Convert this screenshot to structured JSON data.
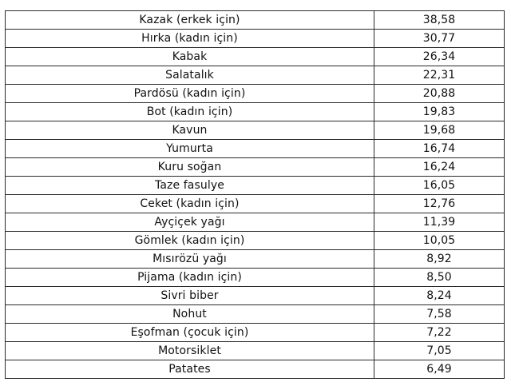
{
  "table": {
    "rows": [
      {
        "item": "Kazak (erkek için)",
        "value": "38,58"
      },
      {
        "item": "Hırka (kadın için)",
        "value": "30,77"
      },
      {
        "item": "Kabak",
        "value": "26,34"
      },
      {
        "item": "Salatalık",
        "value": "22,31"
      },
      {
        "item": "Pardösü (kadın için)",
        "value": "20,88"
      },
      {
        "item": "Bot (kadın için)",
        "value": "19,83"
      },
      {
        "item": "Kavun",
        "value": "19,68"
      },
      {
        "item": "Yumurta",
        "value": "16,74"
      },
      {
        "item": "Kuru soğan",
        "value": "16,24"
      },
      {
        "item": "Taze fasulye",
        "value": "16,05"
      },
      {
        "item": "Ceket (kadın için)",
        "value": "12,76"
      },
      {
        "item": "Ayçiçek yağı",
        "value": "11,39"
      },
      {
        "item": "Gömlek (kadın için)",
        "value": "10,05"
      },
      {
        "item": "Mısırözü yağı",
        "value": "8,92"
      },
      {
        "item": "Pijama (kadın için)",
        "value": "8,50"
      },
      {
        "item": "Sivri biber",
        "value": "8,24"
      },
      {
        "item": "Nohut",
        "value": "7,58"
      },
      {
        "item": "Eşofman (çocuk için)",
        "value": "7,22"
      },
      {
        "item": "Motorsiklet",
        "value": "7,05"
      },
      {
        "item": "Patates",
        "value": "6,49"
      }
    ]
  }
}
